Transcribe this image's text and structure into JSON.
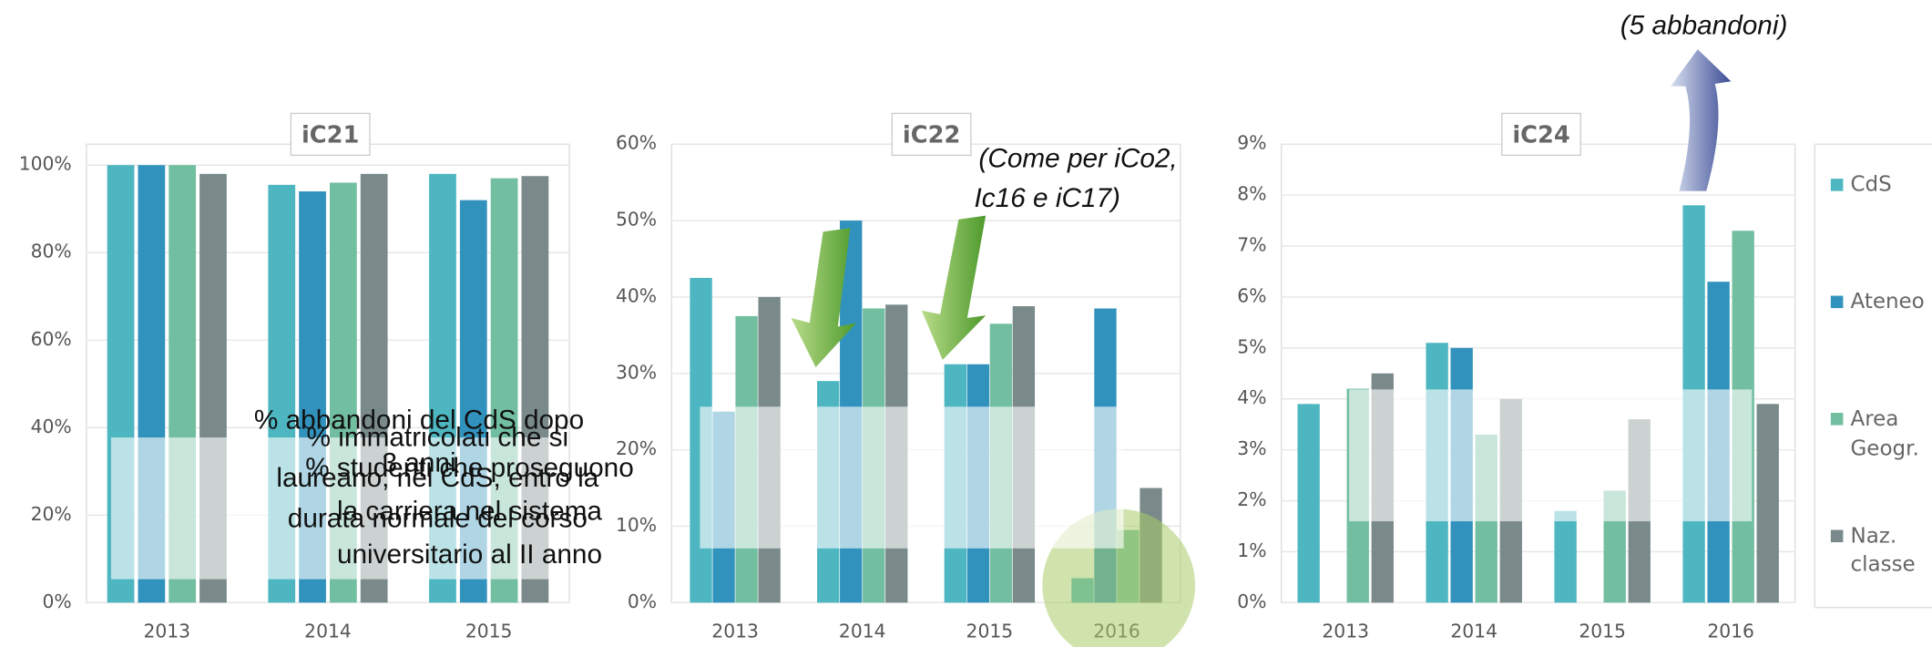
{
  "chart_data": [
    {
      "type": "bar",
      "title": "iC21",
      "categories": [
        "2013",
        "2014",
        "2015"
      ],
      "series": [
        {
          "name": "CdS",
          "color": "#4db6c1",
          "values": [
            100,
            95.5,
            98
          ]
        },
        {
          "name": "Ateneo",
          "color": "#3193bd",
          "values": [
            100,
            94,
            92
          ]
        },
        {
          "name": "Area Geogr.",
          "color": "#72bea0",
          "values": [
            100,
            96,
            97
          ]
        },
        {
          "name": "Naz. classe",
          "color": "#7a8a8a",
          "values": [
            98,
            98,
            97.5
          ]
        }
      ],
      "ylim": [
        0,
        100
      ],
      "yticks": [
        {
          "value": 0,
          "label": "0%"
        },
        {
          "value": 20,
          "label": "20%"
        },
        {
          "value": 40,
          "label": "40%"
        },
        {
          "value": 60,
          "label": "60%"
        },
        {
          "value": 80,
          "label": "80%"
        },
        {
          "value": 100,
          "label": "100%"
        }
      ],
      "note": [
        "% studenti che proseguono",
        "la carriera nel sistema",
        "universitario al II anno"
      ]
    },
    {
      "type": "bar",
      "title": "iC22",
      "categories": [
        "2013",
        "2014",
        "2015",
        "2016"
      ],
      "series": [
        {
          "name": "CdS",
          "color": "#4db6c1",
          "values": [
            42.5,
            29,
            31.2,
            3.2
          ]
        },
        {
          "name": "Ateneo",
          "color": "#3193bd",
          "values": [
            25,
            50,
            31.2,
            38.5
          ]
        },
        {
          "name": "Area Geogr.",
          "color": "#72bea0",
          "values": [
            37.5,
            38.5,
            36.5,
            9.5
          ]
        },
        {
          "name": "Naz. classe",
          "color": "#7a8a8a",
          "values": [
            40,
            39,
            38.8,
            15
          ]
        }
      ],
      "ylim": [
        0,
        60
      ],
      "yticks": [
        {
          "value": 0,
          "label": "0%"
        },
        {
          "value": 10,
          "label": "10%"
        },
        {
          "value": 20,
          "label": "20%"
        },
        {
          "value": 30,
          "label": "30%"
        },
        {
          "value": 40,
          "label": "40%"
        },
        {
          "value": 50,
          "label": "50%"
        },
        {
          "value": 60,
          "label": "60%"
        }
      ],
      "note": [
        "% immatricolati che si",
        "laureano, nel CdS, entro la",
        "durata normale del corso"
      ],
      "annotation": [
        "(Come per iCo2,",
        "Ic16 e iC17)"
      ]
    },
    {
      "type": "bar",
      "title": "iC24",
      "categories": [
        "2013",
        "2014",
        "2015",
        "2016"
      ],
      "series": [
        {
          "name": "CdS",
          "color": "#4db6c1",
          "values": [
            3.9,
            5.1,
            1.8,
            7.8
          ]
        },
        {
          "name": "Ateneo",
          "color": "#3193bd",
          "values": [
            null,
            5.0,
            null,
            6.3
          ]
        },
        {
          "name": "Area Geogr.",
          "color": "#72bea0",
          "values": [
            4.2,
            3.3,
            2.2,
            7.3
          ]
        },
        {
          "name": "Naz. classe",
          "color": "#7a8a8a",
          "values": [
            4.5,
            4.0,
            3.6,
            3.9
          ]
        }
      ],
      "ylim": [
        0,
        9
      ],
      "yticks": [
        {
          "value": 0,
          "label": "0%"
        },
        {
          "value": 1,
          "label": "1%"
        },
        {
          "value": 2,
          "label": "2%"
        },
        {
          "value": 3,
          "label": "3%"
        },
        {
          "value": 4,
          "label": "4%"
        },
        {
          "value": 5,
          "label": "5%"
        },
        {
          "value": 6,
          "label": "6%"
        },
        {
          "value": 7,
          "label": "7%"
        },
        {
          "value": 8,
          "label": "8%"
        },
        {
          "value": 9,
          "label": "9%"
        }
      ],
      "note": [
        "% abbandoni del CdS dopo",
        "3 anni"
      ],
      "annotation": [
        "(5 abbandoni)"
      ]
    }
  ]
}
